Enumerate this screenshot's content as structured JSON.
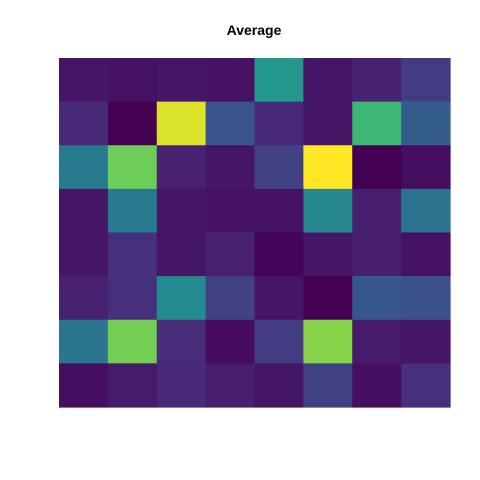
{
  "chart_data": {
    "type": "heatmap",
    "title": "Average",
    "xlabel": "",
    "ylabel": "",
    "rows": 8,
    "cols": 8,
    "colorscale": "viridis",
    "value_range": [
      0,
      1
    ],
    "legend": "none",
    "axes_shown": false,
    "grid": false,
    "values": [
      [
        0.06,
        0.05,
        0.06,
        0.05,
        0.53,
        0.06,
        0.1,
        0.18
      ],
      [
        0.12,
        0.0,
        0.95,
        0.26,
        0.12,
        0.06,
        0.68,
        0.3
      ],
      [
        0.42,
        0.78,
        0.1,
        0.06,
        0.2,
        1.0,
        0.0,
        0.04
      ],
      [
        0.06,
        0.42,
        0.06,
        0.05,
        0.05,
        0.46,
        0.09,
        0.38
      ],
      [
        0.06,
        0.14,
        0.06,
        0.1,
        0.01,
        0.06,
        0.09,
        0.05
      ],
      [
        0.1,
        0.14,
        0.48,
        0.2,
        0.06,
        0.0,
        0.28,
        0.25
      ],
      [
        0.4,
        0.79,
        0.13,
        0.03,
        0.18,
        0.82,
        0.08,
        0.06
      ],
      [
        0.04,
        0.08,
        0.12,
        0.09,
        0.06,
        0.2,
        0.04,
        0.14
      ]
    ]
  }
}
